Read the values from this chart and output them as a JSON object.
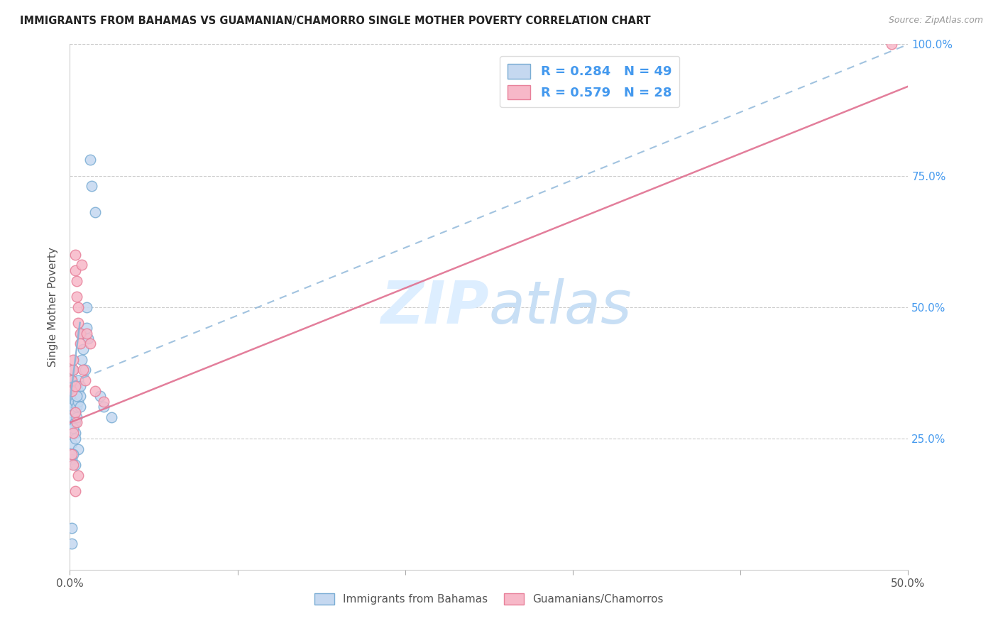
{
  "title": "IMMIGRANTS FROM BAHAMAS VS GUAMANIAN/CHAMORRO SINGLE MOTHER POVERTY CORRELATION CHART",
  "source": "Source: ZipAtlas.com",
  "ylabel": "Single Mother Poverty",
  "blue_R": 0.284,
  "blue_N": 49,
  "pink_R": 0.579,
  "pink_N": 28,
  "blue_fill_color": "#c5d8f0",
  "pink_fill_color": "#f7b8c8",
  "blue_edge_color": "#7aadd4",
  "pink_edge_color": "#e8809a",
  "blue_line_color": "#8ab4d8",
  "pink_line_color": "#e07090",
  "legend_text_color": "#4499ee",
  "watermark_color": "#ddeeff",
  "grid_color": "#cccccc",
  "xlim": [
    0.0,
    0.5
  ],
  "ylim": [
    0.0,
    1.0
  ],
  "blue_x": [
    0.001,
    0.001,
    0.001,
    0.001,
    0.001,
    0.002,
    0.002,
    0.002,
    0.002,
    0.002,
    0.002,
    0.003,
    0.003,
    0.003,
    0.003,
    0.003,
    0.004,
    0.004,
    0.004,
    0.004,
    0.005,
    0.005,
    0.005,
    0.006,
    0.006,
    0.006,
    0.007,
    0.007,
    0.008,
    0.009,
    0.01,
    0.01,
    0.011,
    0.012,
    0.013,
    0.015,
    0.018,
    0.02,
    0.025,
    0.001,
    0.001,
    0.002,
    0.003,
    0.004,
    0.005,
    0.001,
    0.001,
    0.002,
    0.003
  ],
  "blue_y": [
    0.34,
    0.32,
    0.3,
    0.28,
    0.36,
    0.33,
    0.31,
    0.29,
    0.27,
    0.35,
    0.38,
    0.34,
    0.32,
    0.3,
    0.28,
    0.26,
    0.35,
    0.33,
    0.31,
    0.29,
    0.36,
    0.34,
    0.32,
    0.35,
    0.33,
    0.31,
    0.4,
    0.45,
    0.42,
    0.38,
    0.5,
    0.46,
    0.44,
    0.78,
    0.73,
    0.68,
    0.33,
    0.31,
    0.29,
    0.21,
    0.24,
    0.27,
    0.25,
    0.33,
    0.23,
    0.05,
    0.08,
    0.22,
    0.2
  ],
  "pink_x": [
    0.001,
    0.001,
    0.002,
    0.002,
    0.003,
    0.003,
    0.003,
    0.004,
    0.004,
    0.005,
    0.005,
    0.006,
    0.006,
    0.007,
    0.008,
    0.009,
    0.01,
    0.012,
    0.015,
    0.02,
    0.001,
    0.002,
    0.003,
    0.004,
    0.005,
    0.002,
    0.003,
    0.49
  ],
  "pink_y": [
    0.34,
    0.36,
    0.38,
    0.4,
    0.35,
    0.6,
    0.57,
    0.55,
    0.52,
    0.5,
    0.47,
    0.45,
    0.43,
    0.58,
    0.38,
    0.36,
    0.45,
    0.43,
    0.34,
    0.32,
    0.22,
    0.26,
    0.3,
    0.28,
    0.18,
    0.2,
    0.15,
    1.0
  ],
  "blue_trendline_x": [
    0.0,
    0.5
  ],
  "blue_trendline_y": [
    0.355,
    1.0
  ],
  "pink_trendline_x": [
    0.0,
    0.5
  ],
  "pink_trendline_y": [
    0.28,
    0.92
  ]
}
